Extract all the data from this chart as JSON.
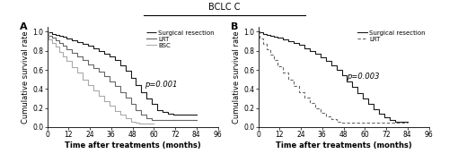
{
  "title": "BCLC C",
  "panel_A_label": "A",
  "panel_B_label": "B",
  "xlabel": "Time after treatments (months)",
  "ylabel": "Cumulative survival rate",
  "xlim": [
    0,
    96
  ],
  "ylim": [
    0,
    1.05
  ],
  "xticks": [
    0,
    12,
    24,
    36,
    48,
    60,
    72,
    84,
    96
  ],
  "yticks": [
    0.0,
    0.2,
    0.4,
    0.6,
    0.8,
    1.0
  ],
  "pvalue_A": "p=0.001",
  "pvalue_B": "p=0.003",
  "color_surgical": "#1a1a1a",
  "color_lrt": "#666666",
  "color_bsc": "#aaaaaa",
  "legend_A": [
    "Surgical resection",
    "LRT",
    "BSC"
  ],
  "legend_B": [
    "Surgical resection",
    "LRT"
  ],
  "A_surgical_x": [
    0,
    1,
    3,
    5,
    7,
    9,
    11,
    14,
    17,
    20,
    23,
    26,
    29,
    32,
    35,
    38,
    41,
    44,
    47,
    50,
    53,
    56,
    59,
    62,
    65,
    68,
    71,
    74,
    84
  ],
  "A_surgical_y": [
    1.0,
    0.99,
    0.98,
    0.97,
    0.96,
    0.95,
    0.93,
    0.91,
    0.89,
    0.87,
    0.85,
    0.83,
    0.8,
    0.77,
    0.74,
    0.7,
    0.65,
    0.59,
    0.52,
    0.44,
    0.37,
    0.3,
    0.24,
    0.18,
    0.16,
    0.14,
    0.13,
    0.13,
    0.13
  ],
  "A_lrt_x": [
    0,
    1,
    3,
    5,
    7,
    9,
    11,
    14,
    17,
    20,
    23,
    26,
    29,
    32,
    35,
    38,
    41,
    44,
    47,
    50,
    53,
    56,
    59,
    60,
    84
  ],
  "A_lrt_y": [
    1.0,
    0.96,
    0.94,
    0.91,
    0.88,
    0.85,
    0.82,
    0.78,
    0.74,
    0.7,
    0.66,
    0.62,
    0.58,
    0.53,
    0.48,
    0.43,
    0.37,
    0.31,
    0.24,
    0.18,
    0.13,
    0.09,
    0.07,
    0.07,
    0.07
  ],
  "A_bsc_x": [
    0,
    1,
    3,
    5,
    7,
    9,
    11,
    14,
    17,
    20,
    23,
    26,
    29,
    32,
    35,
    38,
    41,
    44,
    47,
    50,
    52,
    60
  ],
  "A_bsc_y": [
    1.0,
    0.92,
    0.88,
    0.84,
    0.79,
    0.74,
    0.69,
    0.63,
    0.57,
    0.5,
    0.44,
    0.38,
    0.33,
    0.27,
    0.22,
    0.17,
    0.13,
    0.09,
    0.06,
    0.05,
    0.04,
    0.04
  ],
  "B_surgical_x": [
    0,
    1,
    3,
    5,
    7,
    9,
    11,
    14,
    17,
    20,
    23,
    26,
    29,
    32,
    35,
    38,
    41,
    44,
    47,
    50,
    53,
    56,
    59,
    62,
    65,
    68,
    71,
    74,
    77,
    84
  ],
  "B_surgical_y": [
    1.0,
    0.99,
    0.98,
    0.97,
    0.96,
    0.95,
    0.94,
    0.92,
    0.9,
    0.88,
    0.86,
    0.83,
    0.8,
    0.77,
    0.73,
    0.69,
    0.65,
    0.6,
    0.54,
    0.48,
    0.42,
    0.36,
    0.3,
    0.24,
    0.19,
    0.14,
    0.1,
    0.07,
    0.06,
    0.06
  ],
  "B_lrt_x": [
    0,
    1,
    3,
    5,
    7,
    9,
    11,
    14,
    17,
    20,
    23,
    26,
    29,
    32,
    35,
    38,
    41,
    44,
    47,
    50,
    60,
    84
  ],
  "B_lrt_y": [
    1.0,
    0.93,
    0.87,
    0.82,
    0.76,
    0.7,
    0.64,
    0.57,
    0.5,
    0.43,
    0.37,
    0.31,
    0.25,
    0.2,
    0.15,
    0.11,
    0.08,
    0.06,
    0.05,
    0.05,
    0.05,
    0.05
  ],
  "background_color": "#ffffff",
  "font_size": 6.0,
  "title_fontsize": 7.0
}
